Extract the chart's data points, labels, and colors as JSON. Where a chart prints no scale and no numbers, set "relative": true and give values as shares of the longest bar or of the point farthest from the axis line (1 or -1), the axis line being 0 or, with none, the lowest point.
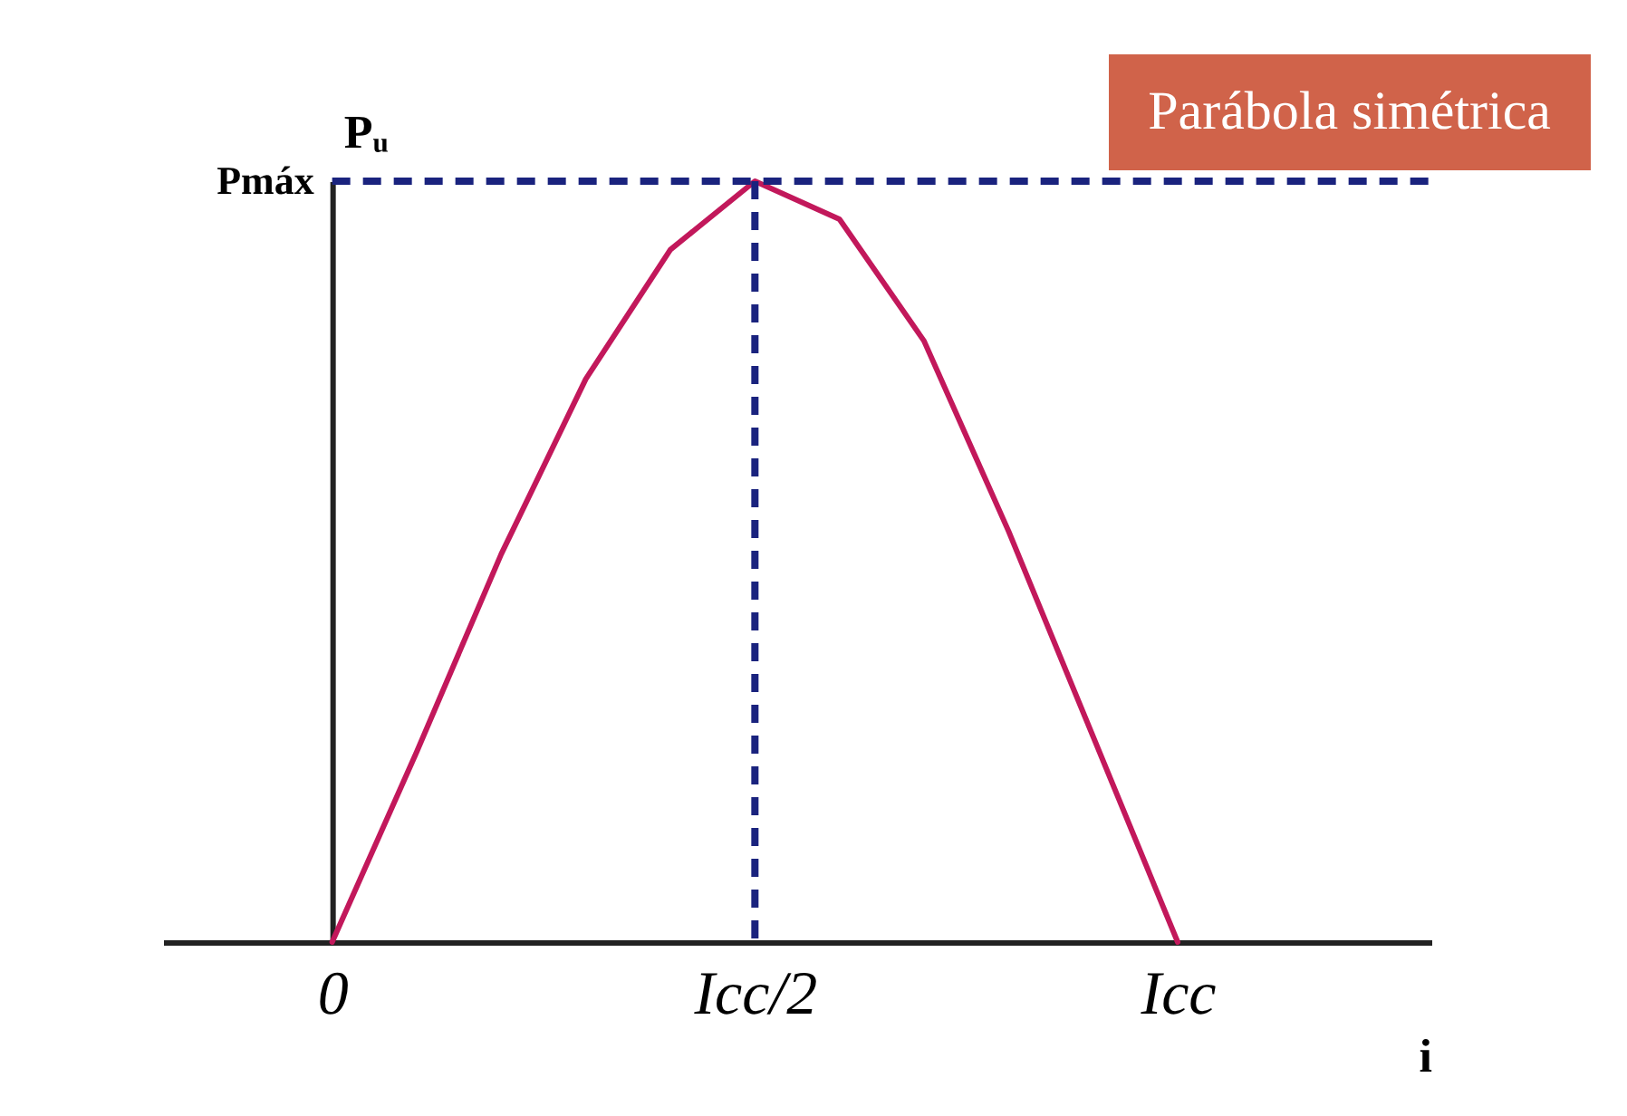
{
  "chart_data": {
    "type": "line",
    "relative": true,
    "xlabel": "i",
    "ylabel": "Pᵤ",
    "categories": [
      "0",
      null,
      null,
      null,
      null,
      "Icc/2",
      null,
      null,
      null,
      null,
      "Icc"
    ],
    "series": [
      {
        "color": "#c2185b",
        "values": [
          0,
          0.25,
          0.51,
          0.74,
          0.91,
          1,
          0.95,
          0.79,
          0.54,
          0.27,
          0
        ]
      }
    ],
    "ref_lines": [
      {
        "axis": "y",
        "value": 1,
        "label": "Pmáx",
        "color": "#1a237e",
        "line_style": "dashed"
      },
      {
        "axis": "x",
        "value": "Icc/2",
        "color": "#1a237e",
        "line_style": "dashed"
      }
    ],
    "annotations": [
      "Parábola simétrica"
    ],
    "grid": false,
    "marker": "none",
    "line_style": "solid"
  }
}
